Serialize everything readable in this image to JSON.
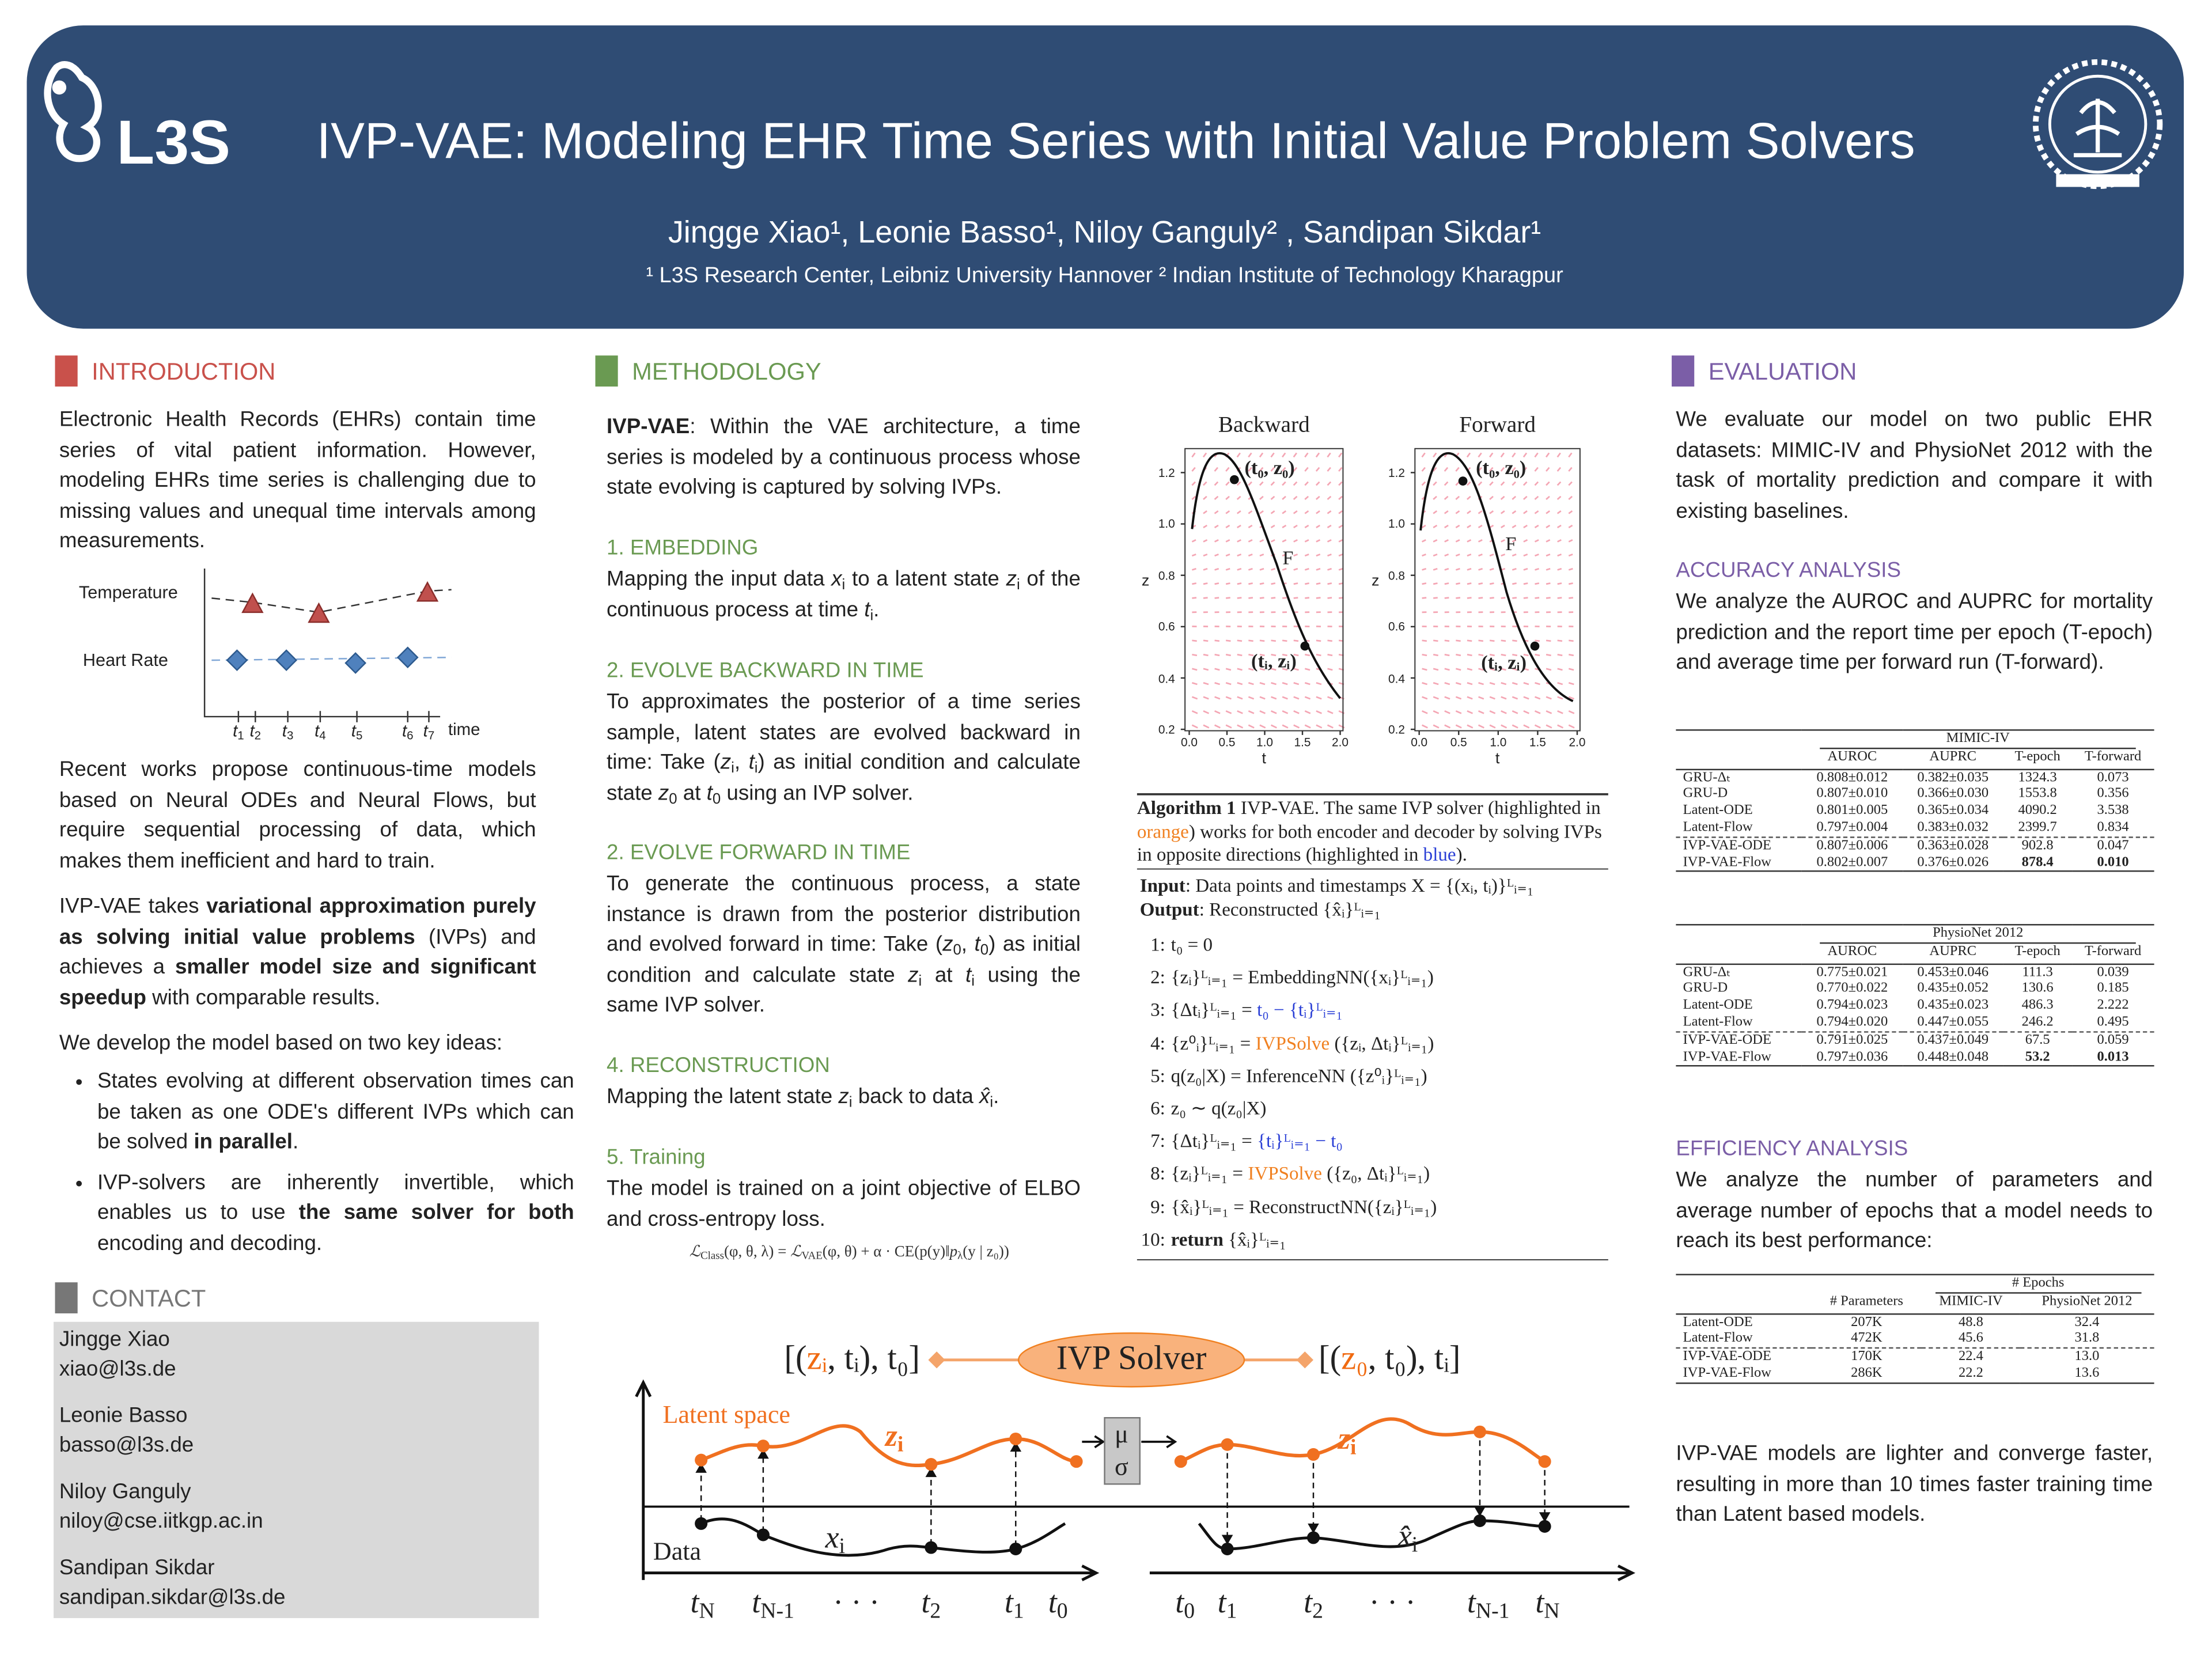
{
  "header": {
    "logo": "L3S",
    "title": "IVP-VAE: Modeling EHR Time Series with Initial Value Problem Solvers",
    "authors": "Jingge Xiao¹, Leonie Basso¹, Niloy Ganguly² , Sandipan Sikdar¹",
    "affiliations": "¹ L3S Research Center, Leibniz University Hannover ² Indian Institute of Technology Kharagpur"
  },
  "introduction": {
    "heading": "INTRODUCTION",
    "p1": "Electronic Health Records (EHRs) contain time series of vital patient information. However, modeling EHRs time series is challenging due to missing values and unequal time intervals among measurements.",
    "figure": {
      "rows": [
        "Temperature",
        "Heart Rate"
      ],
      "x_labels": [
        {
          "math": "t",
          "sub": "1"
        },
        {
          "math": "t",
          "sub": "2"
        },
        {
          "math": "t",
          "sub": "3"
        },
        {
          "math": "t",
          "sub": "4"
        },
        {
          "math": "t",
          "sub": "5"
        },
        {
          "math": "t",
          "sub": "6"
        },
        {
          "math": "t",
          "sub": "7"
        }
      ],
      "x_title": "time"
    },
    "p2": "Recent works propose continuous-time models based on Neural ODEs and Neural Flows, but require sequential processing of data, which makes them inefficient and hard to train.",
    "p3": [
      "IVP-VAE takes ",
      {
        "b": "variational approximation purely as solving initial value problems"
      },
      " (IVPs) and achieves a ",
      {
        "b": "smaller model size and significant speedup"
      },
      " with comparable results."
    ],
    "p4": "We develop the model based on two key ideas:",
    "bullets": [
      [
        "States evolving at different observation times can be taken as one ODE's different IVPs which can be solved ",
        {
          "b": "in parallel"
        },
        "."
      ],
      [
        "IVP-solvers are inherently invertible, which enables us to use ",
        {
          "b": "the same solver for both"
        },
        " encoding and decoding."
      ]
    ]
  },
  "contact": {
    "heading": "CONTACT",
    "people": [
      {
        "name": "Jingge Xiao",
        "email": "xiao@l3s.de"
      },
      {
        "name": "Leonie Basso",
        "email": "basso@l3s.de"
      },
      {
        "name": "Niloy Ganguly",
        "email": "niloy@cse.iitkgp.ac.in"
      },
      {
        "name": "Sandipan Sikdar",
        "email": "sandipan.sikdar@l3s.de"
      }
    ]
  },
  "methodology": {
    "heading": "METHODOLOGY",
    "intro": [
      {
        "b": "IVP-VAE"
      },
      ": Within the VAE architecture, a time series is modeled by a continuous process whose state evolving is captured by solving IVPs."
    ],
    "sections": [
      {
        "title": "1. EMBEDDING",
        "text": [
          "Mapping the input data ",
          {
            "math": "x",
            "sub": "i"
          },
          " to a latent state ",
          {
            "math": "z",
            "sub": "i"
          },
          " of the continuous process at time ",
          {
            "math": "t",
            "sub": "i"
          },
          "."
        ]
      },
      {
        "title": "2. EVOLVE BACKWARD IN TIME",
        "text": [
          "To approximates the posterior of a time series sample, latent states are evolved backward in time: Take (",
          {
            "math": "z",
            "sub": "i"
          },
          ", ",
          {
            "math": "t",
            "sub": "i"
          },
          ") as initial condition and calculate state ",
          {
            "math": "z",
            "sub": "0"
          },
          " at ",
          {
            "math": "t",
            "sub": "0"
          },
          " using an IVP solver."
        ]
      },
      {
        "title": "2. EVOLVE FORWARD IN TIME",
        "text": [
          "To generate the continuous process, a state instance is drawn from the posterior distribution and evolved forward in time: Take (",
          {
            "math": "z",
            "sub": "0"
          },
          ", ",
          {
            "math": "t",
            "sub": "0"
          },
          ") as initial condition and calculate state ",
          {
            "math": "z",
            "sub": "i"
          },
          " at ",
          {
            "math": "t",
            "sub": "i"
          },
          " using the same IVP solver."
        ]
      },
      {
        "title": "4. RECONSTRUCTION",
        "text": [
          "Mapping the latent state ",
          {
            "math": "z",
            "sub": "i"
          },
          " back to data ",
          {
            "math": "x̂",
            "sub": "i"
          },
          "."
        ]
      },
      {
        "title": "5. Training",
        "text": "The model is trained on a joint objective of ELBO and cross-entropy loss."
      }
    ],
    "formula": [
      {
        "math": "ℒ",
        "sub": "Class"
      },
      "(φ, θ, λ) = ",
      {
        "math": "ℒ",
        "sub": "VAE"
      },
      "(φ, θ) + α · CE(p(y)‖",
      {
        "math": "p",
        "sub": "λ"
      },
      "(y | z₀))"
    ],
    "plots": [
      {
        "title": "Backward",
        "xlabel": "t",
        "ylabel": "z",
        "xticks": [
          "0.0",
          "0.5",
          "1.0",
          "1.5",
          "2.0"
        ],
        "yticks": [
          "0.2",
          "0.4",
          "0.6",
          "0.8",
          "1.0",
          "1.2"
        ],
        "annotations": [
          "(t₀, z₀)",
          "F",
          "(tᵢ, zᵢ)"
        ]
      },
      {
        "title": "Forward",
        "xlabel": "t",
        "ylabel": "z",
        "xticks": [
          "0.0",
          "0.5",
          "1.0",
          "1.5",
          "2.0"
        ],
        "yticks": [
          "0.2",
          "0.4",
          "0.6",
          "0.8",
          "1.0",
          "1.2"
        ],
        "annotations": [
          "(t₀, z₀)",
          "F",
          "(tᵢ, zᵢ)"
        ]
      }
    ],
    "algorithm": {
      "caption": [
        {
          "b": "Algorithm 1"
        },
        " IVP-VAE. The same IVP solver (highlighted in ",
        {
          "text": "orange",
          "color": "#f08020"
        },
        ") works for both encoder and decoder by solving IVPs in opposite directions (highlighted in ",
        {
          "text": "blue",
          "color": "#2a3fd6"
        },
        ")."
      ],
      "input": [
        {
          "b": "Input"
        },
        ": Data points and timestamps X = {(xᵢ, tᵢ)}ᴸᵢ₌₁"
      ],
      "output": [
        {
          "b": "Output"
        },
        ": Reconstructed {x̂ᵢ}ᴸᵢ₌₁"
      ],
      "steps": [
        {
          "num": "1:",
          "text": "t₀ = 0"
        },
        {
          "num": "2:",
          "text": "{zᵢ}ᴸᵢ₌₁ = EmbeddingNN({xᵢ}ᴸᵢ₌₁)"
        },
        {
          "num": "3:",
          "text": [
            "{Δtᵢ}ᴸᵢ₌₁ = ",
            {
              "text": "t₀ − {tᵢ}ᴸᵢ₌₁",
              "color": "#2a3fd6"
            }
          ]
        },
        {
          "num": "4:",
          "text": [
            "{z⁰ᵢ}ᴸᵢ₌₁ = ",
            {
              "text": "IVPSolve",
              "color": "#f08020"
            },
            " ({zᵢ, Δtᵢ}ᴸᵢ₌₁)"
          ]
        },
        {
          "num": "5:",
          "text": "q(z₀|X) = InferenceNN ({z⁰ᵢ}ᴸᵢ₌₁)"
        },
        {
          "num": "6:",
          "text": "z₀ ∼ q(z₀|X)"
        },
        {
          "num": "7:",
          "text": [
            "{Δtᵢ}ᴸᵢ₌₁ = ",
            {
              "text": "{tᵢ}ᴸᵢ₌₁ − t₀",
              "color": "#2a3fd6"
            }
          ]
        },
        {
          "num": "8:",
          "text": [
            "{zᵢ}ᴸᵢ₌₁ = ",
            {
              "text": "IVPSolve",
              "color": "#f08020"
            },
            " ({z₀, Δtᵢ}ᴸᵢ₌₁)"
          ]
        },
        {
          "num": "9:",
          "text": "{x̂ᵢ}ᴸᵢ₌₁ = ReconstructNN({zᵢ}ᴸᵢ₌₁)"
        },
        {
          "num": "10:",
          "text": [
            {
              "b": "return"
            },
            " {x̂ᵢ}ᴸᵢ₌₁"
          ]
        }
      ]
    },
    "diagram": {
      "left_state": [
        "[(",
        {
          "text": "zᵢ",
          "color": "#f06a10"
        },
        ", tᵢ), t₀]"
      ],
      "solver": "IVP Solver",
      "right_state": [
        "[(",
        {
          "text": "z₀",
          "color": "#f06a10"
        },
        ", t₀), tᵢ]"
      ],
      "latent_label": "Latent space",
      "latent_var": {
        "math": "z",
        "sub": "i"
      },
      "mu": "μ",
      "sigma": "σ",
      "data_label": "Data",
      "data_var_left": {
        "math": "x",
        "sub": "i"
      },
      "data_var_right": {
        "math": "x̂",
        "sub": "i"
      },
      "left_axis": [
        {
          "math": "t",
          "sub": "N"
        },
        {
          "math": "t",
          "sub": "N-1"
        },
        "· · ·",
        {
          "math": "t",
          "sub": "2"
        },
        {
          "math": "t",
          "sub": "1"
        },
        {
          "math": "t",
          "sub": "0"
        }
      ],
      "right_axis": [
        {
          "math": "t",
          "sub": "0"
        },
        {
          "math": "t",
          "sub": "1"
        },
        {
          "math": "t",
          "sub": "2"
        },
        "· · ·",
        {
          "math": "t",
          "sub": "N-1"
        },
        {
          "math": "t",
          "sub": "N"
        }
      ]
    }
  },
  "evaluation": {
    "heading": "EVALUATION",
    "intro": "We evaluate our model on two public EHR datasets: MIMIC-IV and PhysioNet 2012 with the task of mortality prediction and compare it with existing baselines.",
    "accuracy_title": "ACCURACY ANALYSIS",
    "accuracy_text": "We analyze the  AUROC and AUPRC for mortality prediction and the report time per epoch (T-epoch) and average time per forward run (T-forward).",
    "tables": [
      {
        "dataset": "MIMIC-IV",
        "columns": [
          "AUROC",
          "AUPRC",
          "T-epoch",
          "T-forward"
        ],
        "rows": [
          [
            "GRU-Δₜ",
            "0.808±0.012",
            "0.382±0.035",
            "1324.3",
            "0.073"
          ],
          [
            "GRU-D",
            "0.807±0.010",
            "0.366±0.030",
            "1553.8",
            "0.356"
          ],
          [
            "Latent-ODE",
            "0.801±0.005",
            "0.365±0.034",
            "4090.2",
            "3.538"
          ],
          [
            "Latent-Flow",
            "0.797±0.004",
            "0.383±0.032",
            "2399.7",
            "0.834"
          ],
          [
            "IVP-VAE-ODE",
            "0.807±0.006",
            "0.363±0.028",
            "902.8",
            "0.047"
          ],
          [
            "IVP-VAE-Flow",
            "0.802±0.007",
            "0.376±0.026",
            {
              "b": "878.4"
            },
            {
              "b": "0.010"
            }
          ]
        ]
      },
      {
        "dataset": "PhysioNet 2012",
        "columns": [
          "AUROC",
          "AUPRC",
          "T-epoch",
          "T-forward"
        ],
        "rows": [
          [
            "GRU-Δₜ",
            "0.775±0.021",
            "0.453±0.046",
            "111.3",
            "0.039"
          ],
          [
            "GRU-D",
            "0.770±0.022",
            "0.435±0.052",
            "130.6",
            "0.185"
          ],
          [
            "Latent-ODE",
            "0.794±0.023",
            "0.435±0.023",
            "486.3",
            "2.222"
          ],
          [
            "Latent-Flow",
            "0.794±0.020",
            "0.447±0.055",
            "246.2",
            "0.495"
          ],
          [
            "IVP-VAE-ODE",
            "0.791±0.025",
            "0.437±0.049",
            "67.5",
            "0.059"
          ],
          [
            "IVP-VAE-Flow",
            "0.797±0.036",
            "0.448±0.048",
            {
              "b": "53.2"
            },
            {
              "b": "0.013"
            }
          ]
        ]
      }
    ],
    "efficiency_title": "EFFICIENCY ANALYSIS",
    "efficiency_text": "We analyze the number of parameters and average number of epochs that a model needs to reach its best performance:",
    "efficiency_table": {
      "group": "# Epochs",
      "columns": [
        "# Parameters",
        "MIMIC-IV",
        "PhysioNet 2012"
      ],
      "rows": [
        [
          "Latent-ODE",
          "207K",
          "48.8",
          "32.4"
        ],
        [
          "Latent-Flow",
          "472K",
          "45.6",
          "31.8"
        ],
        [
          "IVP-VAE-ODE",
          "170K",
          "22.4",
          "13.0"
        ],
        [
          "IVP-VAE-Flow",
          "286K",
          "22.2",
          "13.6"
        ]
      ]
    },
    "conclusion": "IVP-VAE models are lighter and converge faster, resulting in more than 10 times faster training time than Latent based models."
  }
}
